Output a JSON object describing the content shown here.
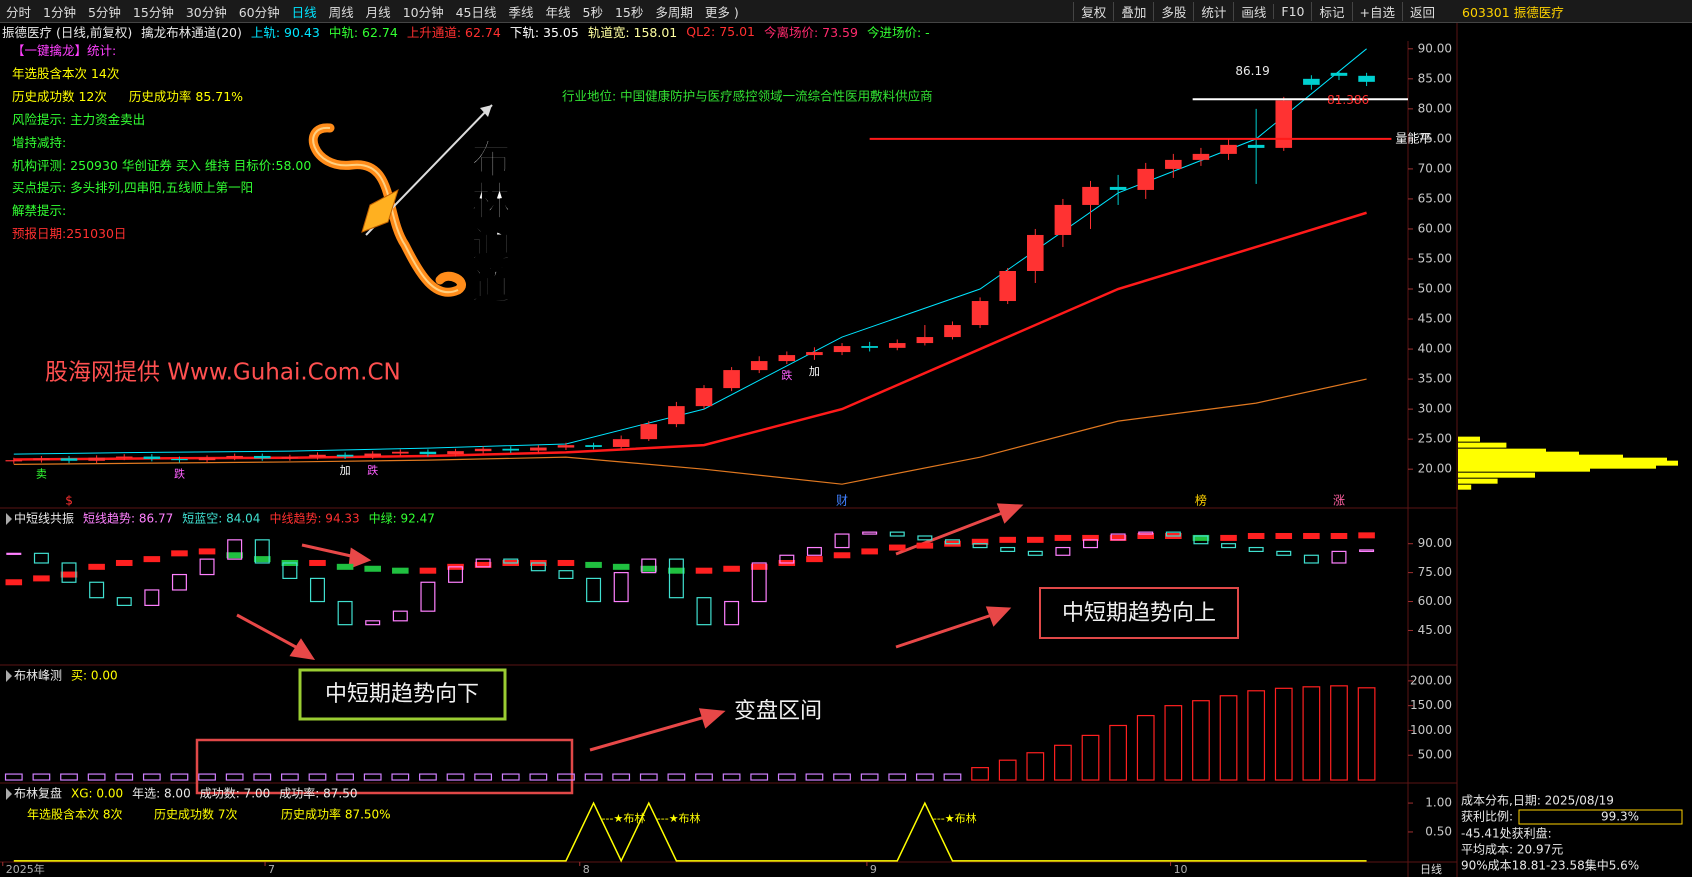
{
  "toolbar": {
    "tabs": [
      "分时",
      "1分钟",
      "5分钟",
      "15分钟",
      "30分钟",
      "60分钟",
      "日线",
      "周线",
      "月线",
      "10分钟",
      "45日线",
      "季线",
      "年线",
      "5秒",
      "15秒",
      "多周期",
      "更多 )"
    ],
    "buttons": [
      "复权",
      "叠加",
      "多股",
      "统计",
      "画线",
      "F10",
      "标记",
      "+自选",
      "返回"
    ],
    "stock": "603301 振德医疗"
  },
  "info_bar": [
    {
      "text": "振德医疗 (日线,前复权)",
      "color": "#e8e8e8"
    },
    {
      "text": "擒龙布林通道(20)",
      "color": "#e8e8e8"
    },
    {
      "text": "上轨: 90.43",
      "color": "#00e5ff"
    },
    {
      "text": "中轨: 62.74",
      "color": "#32ff32"
    },
    {
      "text": "上升通道: 62.74",
      "color": "#ff3030"
    },
    {
      "text": "下轨: 35.05",
      "color": "#ffffff"
    },
    {
      "text": "轨道宽: 158.01",
      "color": "#ffffa0"
    },
    {
      "text": "QL2: 75.01",
      "color": "#ff3030"
    },
    {
      "text": "今离场价: 73.59",
      "color": "#ff2a6d"
    },
    {
      "text": "今进场价: -",
      "color": "#32ff32"
    }
  ],
  "stats": [
    [
      {
        "text": "【一键擒龙】统计:",
        "color": "#ff40ff"
      }
    ],
    [
      {
        "text": "年选股含本次 14次",
        "color": "#ffff00"
      }
    ],
    [
      {
        "text": "历史成功数 12次",
        "color": "#ffff00"
      },
      {
        "text": "历史成功率 85.71%",
        "color": "#ffff00"
      }
    ],
    [
      {
        "text": "风险提示: 主力资金卖出",
        "color": "#32ff32"
      }
    ],
    [
      {
        "text": "增持减持:",
        "color": "#32ff32"
      }
    ],
    [
      {
        "text": "机构评测: 250930 华创证券 买入 维持 目标价:58.00",
        "color": "#32ff32"
      }
    ],
    [
      {
        "text": "买点提示: 多头排列,四串阳,五线顺上第一阳",
        "color": "#32ff32"
      }
    ],
    [
      {
        "text": "解禁提示:",
        "color": "#32ff32"
      }
    ],
    [
      {
        "text": "预报日期:251030日",
        "color": "#ff3030"
      }
    ]
  ],
  "industry": "行业地位: 中国健康防护与医疗感控领域一流综合性医用敷料供应商",
  "watermark": "股海网提供 Www.Guhai.Com.CN",
  "logo_text": [
    "布",
    "林",
    "通",
    "道"
  ],
  "callouts": {
    "down": "中短期趋势向下",
    "up": "中短期趋势向上",
    "zone": "变盘区间"
  },
  "chart_data": [
    {
      "type": "candlestick",
      "xlim": [
        -0.5,
        50.5
      ],
      "ylim": [
        13.7,
        91.3
      ],
      "yticks": [
        {
          "value": 20,
          "label": "20.00"
        },
        {
          "value": 25,
          "label": "25.00"
        },
        {
          "value": 30,
          "label": "30.00"
        },
        {
          "value": 35,
          "label": "35.00"
        },
        {
          "value": 40,
          "label": "40.00"
        },
        {
          "value": 45,
          "label": "45.00"
        },
        {
          "value": 50,
          "label": "50.00"
        },
        {
          "value": 55,
          "label": "55.00"
        },
        {
          "value": 60,
          "label": "60.00"
        },
        {
          "value": 65,
          "label": "65.00"
        },
        {
          "value": 70,
          "label": "70.00"
        },
        {
          "value": 75,
          "label": "75.00"
        },
        {
          "value": 80,
          "label": "80.00"
        },
        {
          "value": 85,
          "label": "85.00"
        },
        {
          "value": 90,
          "label": "90.00"
        }
      ],
      "xticks": [
        {
          "value": -0.4,
          "label": "2025年"
        },
        {
          "value": 9.1,
          "label": "7"
        },
        {
          "value": 20.5,
          "label": "8"
        },
        {
          "value": 30.9,
          "label": "9"
        },
        {
          "value": 41.9,
          "label": "10"
        }
      ],
      "period_label": "日线",
      "up_color": "#ff3232",
      "down_color": "#00d0d0",
      "open": [
        21.3,
        21.5,
        21.8,
        21.4,
        21.9,
        22.1,
        21.7,
        21.5,
        21.9,
        22.2,
        21.8,
        22.0,
        22.4,
        22.1,
        22.6,
        22.9,
        22.5,
        23.0,
        23.4,
        23.1,
        23.6,
        24.0,
        23.7,
        25.0,
        27.5,
        30.5,
        33.5,
        36.5,
        38.0,
        39.0,
        39.5,
        40.5,
        40.2,
        41.0,
        42.0,
        44.0,
        48.0,
        53.0,
        59.0,
        64.0,
        67.0,
        66.5,
        70.0,
        71.5,
        72.5,
        74.0,
        73.5,
        85.0,
        86.0,
        85.5
      ],
      "high": [
        21.9,
        22.2,
        22.2,
        22.3,
        22.5,
        22.5,
        22.1,
        22.3,
        22.6,
        22.6,
        22.4,
        22.8,
        22.8,
        23.0,
        23.3,
        23.3,
        23.4,
        23.8,
        23.8,
        24.0,
        24.4,
        24.4,
        25.6,
        28.0,
        31.2,
        34.0,
        37.0,
        38.8,
        39.6,
        40.3,
        41.0,
        41.2,
        41.6,
        44.0,
        44.6,
        48.6,
        53.5,
        60.0,
        65.0,
        68.0,
        69.0,
        71.0,
        72.5,
        73.5,
        75.0,
        80.0,
        82.0,
        85.6,
        86.2,
        86.0
      ],
      "low": [
        20.9,
        21.1,
        21.0,
        21.0,
        21.5,
        21.3,
        21.1,
        21.1,
        21.5,
        21.4,
        21.4,
        21.6,
        21.7,
        21.7,
        22.2,
        22.1,
        22.1,
        22.6,
        22.7,
        22.7,
        23.2,
        23.3,
        23.4,
        24.7,
        27.0,
        30.0,
        33.0,
        36.0,
        37.5,
        38.2,
        39.0,
        39.6,
        39.8,
        40.6,
        41.6,
        43.5,
        47.5,
        51.0,
        57.0,
        60.0,
        64.0,
        65.0,
        68.5,
        70.5,
        71.5,
        67.5,
        73.0,
        83.2,
        84.8,
        83.8
      ],
      "close": [
        21.5,
        21.8,
        21.4,
        21.9,
        22.1,
        21.7,
        21.5,
        21.9,
        22.2,
        21.8,
        22.0,
        22.4,
        22.1,
        22.6,
        22.9,
        22.5,
        23.0,
        23.4,
        23.1,
        23.6,
        24.0,
        23.7,
        25.0,
        27.5,
        30.5,
        33.5,
        36.5,
        38.0,
        39.0,
        39.5,
        40.5,
        40.2,
        41.0,
        42.0,
        44.0,
        48.0,
        53.0,
        59.0,
        64.0,
        67.0,
        66.5,
        70.0,
        71.5,
        72.5,
        74.0,
        73.5,
        81.4,
        84.0,
        85.5,
        84.5
      ],
      "band_x": [
        0,
        5,
        10,
        15,
        20,
        25,
        30,
        35,
        40,
        45,
        49
      ],
      "bands": [
        {
          "color": "#00e5ff",
          "width": 1,
          "values": [
            22.5,
            22.8,
            23.0,
            23.5,
            24.2,
            30.0,
            42.0,
            50.0,
            66.0,
            75.0,
            90.0
          ]
        },
        {
          "color": "#ff1a1a",
          "width": 2.5,
          "values": [
            21.6,
            21.8,
            21.9,
            22.2,
            22.8,
            24.0,
            30.0,
            40.0,
            50.0,
            57.0,
            62.7
          ]
        },
        {
          "color": "#e07820",
          "width": 1.2,
          "values": [
            20.8,
            21.0,
            21.2,
            21.5,
            22.0,
            20.0,
            17.5,
            22.0,
            28.0,
            31.0,
            35.0
          ]
        }
      ],
      "hlines": [
        {
          "value": 75,
          "color": "#ff1a1a",
          "x_from": 31,
          "x_to": 49.9,
          "label": "量能平"
        },
        {
          "value": 81.6,
          "color": "#ffffff",
          "x_from": 42.7,
          "x_to": 50.5
        }
      ],
      "annotations": [
        {
          "x": 46,
          "value": 86.19,
          "color": "#e8e8e8"
        },
        {
          "x": 49.6,
          "value": 81.386,
          "color": "#ff3030"
        }
      ],
      "events": [
        {
          "x": 2,
          "label": "$",
          "color": "#ff3030"
        },
        {
          "x": 30,
          "label": "财",
          "color": "#4080ff"
        },
        {
          "x": 43,
          "label": "榜",
          "color": "#ffd200"
        },
        {
          "x": 48,
          "label": "涨",
          "color": "#ff60a0"
        }
      ],
      "signals": [
        {
          "x": 1,
          "label": "卖",
          "color": "#32ff32"
        },
        {
          "x": 6,
          "label": "跌",
          "color": "#ff60ff"
        },
        {
          "x": 12,
          "label": "加",
          "color": "#ffffff"
        },
        {
          "x": 13,
          "label": "跌",
          "color": "#ff60ff"
        },
        {
          "x": 28,
          "label": "跌",
          "color": "#ff60ff"
        },
        {
          "x": 29,
          "label": "加",
          "color": "#ffffff"
        }
      ],
      "volume_profile": {
        "color": "#ffff00",
        "price": [
          17,
          18,
          19,
          20,
          20.5,
          21,
          21.5,
          22,
          22.5,
          23,
          24,
          25
        ],
        "amount": [
          6,
          18,
          35,
          60,
          90,
          100,
          95,
          75,
          55,
          40,
          22,
          10
        ]
      }
    },
    {
      "type": "bar",
      "header": [
        {
          "text": "中短线共振",
          "color": "#e8e8e8"
        },
        {
          "text": "短线趋势: 86.77",
          "color": "#ff80ff"
        },
        {
          "text": "短蓝空: 84.04",
          "color": "#40e0d0"
        },
        {
          "text": "中线趋势: 94.33",
          "color": "#ff3030"
        },
        {
          "text": "中绿: 92.47",
          "color": "#32ff32"
        }
      ],
      "ylim": [
        27.6,
        108
      ],
      "yticks": [
        {
          "value": 45,
          "label": "45.00"
        },
        {
          "value": 60,
          "label": "60.00"
        },
        {
          "value": 75,
          "label": "75.00"
        },
        {
          "value": 90,
          "label": "90.00"
        }
      ],
      "short_trend": {
        "up_color": "#ff80ff",
        "down_color": "#40e0d0",
        "values": [
          85,
          80,
          70,
          62,
          58,
          66,
          74,
          82,
          92,
          80,
          72,
          60,
          48,
          50,
          55,
          70,
          78,
          82,
          80,
          76,
          72,
          60,
          75,
          82,
          62,
          48,
          60,
          80,
          84,
          88,
          95,
          96,
          94,
          92,
          90,
          88,
          86,
          84,
          88,
          92,
          95,
          96,
          94,
          90,
          88,
          86,
          84,
          80,
          86,
          86.77
        ]
      },
      "mid_trend": {
        "up_color": "#ff2020",
        "down_color": "#20c040",
        "values": [
          70,
          72,
          74,
          78,
          80,
          82,
          85,
          86,
          84,
          82,
          80,
          80,
          78,
          77,
          76,
          76,
          78,
          79,
          80,
          80,
          80,
          79,
          78,
          77,
          76,
          76,
          77,
          78,
          80,
          82,
          84,
          86,
          88,
          89,
          90,
          91,
          92,
          92,
          93,
          93,
          93,
          94,
          94,
          93,
          93,
          94,
          94,
          94,
          94,
          94.33
        ]
      }
    },
    {
      "type": "bar",
      "header": [
        {
          "text": "布林峰测",
          "color": "#e8e8e8"
        },
        {
          "text": "买: 0.00",
          "color": "#ffff00"
        }
      ],
      "ylim": [
        -4,
        230
      ],
      "yticks": [
        {
          "value": 50,
          "label": "50.00"
        },
        {
          "value": 100,
          "label": "100.00"
        },
        {
          "value": 150,
          "label": "150.00"
        },
        {
          "value": 200,
          "label": "200.00"
        }
      ],
      "low_color": "#d080ff",
      "high_color": "#ff2020",
      "values": [
        12,
        12,
        12,
        12,
        12,
        12,
        12,
        12,
        12,
        12,
        12,
        12,
        12,
        12,
        12,
        12,
        12,
        12,
        12,
        12,
        12,
        12,
        12,
        12,
        12,
        12,
        12,
        12,
        12,
        12,
        12,
        12,
        12,
        12,
        12,
        25,
        40,
        55,
        70,
        90,
        110,
        130,
        150,
        160,
        170,
        180,
        185,
        188,
        190,
        186
      ]
    },
    {
      "type": "line",
      "header": [
        {
          "text": "布林复盘",
          "color": "#e8e8e8"
        },
        {
          "text": "XG: 0.00",
          "color": "#ffff00"
        },
        {
          "text": "年选: 8.00",
          "color": "#e8e8e8"
        },
        {
          "text": "成功数: 7.00",
          "color": "#e8e8e8"
        },
        {
          "text": "成功率: 87.50",
          "color": "#e8e8e8"
        }
      ],
      "stats": [
        {
          "text": "年选股含本次 8次",
          "color": "#ffff00"
        },
        {
          "text": "历史成功数 7次",
          "color": "#ffff00"
        },
        {
          "text": "历史成功率 87.50%",
          "color": "#ffff00"
        }
      ],
      "ylim": [
        -0.02,
        1.33
      ],
      "yticks": [
        {
          "value": 0.5,
          "label": "0.50"
        },
        {
          "value": 1,
          "label": "1.00"
        }
      ],
      "color": "#ffff00",
      "values": [
        0,
        0,
        0,
        0,
        0,
        0,
        0,
        0,
        0,
        0,
        0,
        0,
        0,
        0,
        0,
        0,
        0,
        0,
        0,
        0,
        0,
        1,
        0,
        1,
        0,
        0,
        0,
        0,
        0,
        0,
        0,
        0,
        0,
        1,
        0,
        0,
        0,
        0,
        0,
        0,
        0,
        0,
        0,
        0,
        0,
        0,
        0,
        0,
        0,
        0
      ],
      "spike_labels": [
        {
          "x": 21,
          "label": "---★布林"
        },
        {
          "x": 23,
          "label": "---★布林"
        },
        {
          "x": 33,
          "label": "---★布林"
        }
      ]
    }
  ],
  "cost_panel": {
    "title": "成本分布,日期: 2025/08/19",
    "profit_label": "获利比例:",
    "profit_value": "99.3%",
    "profit_line": "-45.41处获利盘:",
    "avg_cost": "平均成本: 20.97元",
    "range": "90%成本18.81-23.58集中5.6%"
  }
}
